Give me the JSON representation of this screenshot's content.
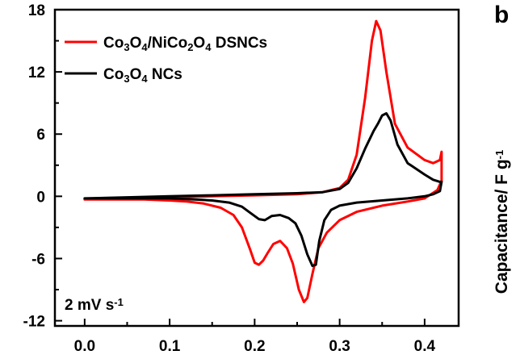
{
  "chart_data": {
    "type": "line",
    "panel_label": "b",
    "ylabel_parts": [
      "Capacitance/ F g",
      "-1"
    ],
    "annotation_parts": [
      "2 mV s",
      "-1"
    ],
    "xlim": [
      -0.035,
      0.44
    ],
    "ylim": [
      -12.5,
      18
    ],
    "x_ticks": [
      "0.0",
      "0.1",
      "0.2",
      "0.3",
      "0.4"
    ],
    "x_tick_values": [
      0.0,
      0.1,
      0.2,
      0.3,
      0.4
    ],
    "y_ticks": [
      "-12",
      "-6",
      "0",
      "6",
      "12",
      "18"
    ],
    "y_tick_values": [
      -12,
      -6,
      0,
      6,
      12,
      18
    ],
    "legend_position": "top-left",
    "series": [
      {
        "name": "Co3O4/NiCo2O4 DSNCs",
        "name_parts": [
          [
            "Co",
            "n"
          ],
          [
            "3",
            "s"
          ],
          [
            "O",
            "n"
          ],
          [
            "4",
            "s"
          ],
          [
            "/NiCo",
            "n"
          ],
          [
            "2",
            "s"
          ],
          [
            "O",
            "n"
          ],
          [
            "4",
            "s"
          ],
          [
            " DSNCs",
            "n"
          ]
        ],
        "color": "#ff0000",
        "x": [
          0.0,
          0.05,
          0.1,
          0.15,
          0.2,
          0.25,
          0.28,
          0.3,
          0.31,
          0.32,
          0.33,
          0.338,
          0.343,
          0.348,
          0.355,
          0.365,
          0.38,
          0.4,
          0.41,
          0.418,
          0.42,
          0.42,
          0.415,
          0.4,
          0.38,
          0.35,
          0.32,
          0.3,
          0.285,
          0.275,
          0.268,
          0.262,
          0.258,
          0.252,
          0.245,
          0.238,
          0.23,
          0.222,
          0.215,
          0.21,
          0.205,
          0.2,
          0.195,
          0.185,
          0.175,
          0.16,
          0.14,
          0.12,
          0.1,
          0.07,
          0.05,
          0.02,
          0.0
        ],
        "y": [
          -0.3,
          -0.2,
          -0.1,
          0.0,
          0.1,
          0.2,
          0.4,
          0.8,
          1.6,
          4.0,
          9.5,
          15.0,
          16.9,
          16.0,
          12.0,
          7.0,
          4.7,
          3.5,
          3.2,
          3.5,
          4.3,
          1.5,
          0.6,
          -0.2,
          -0.5,
          -0.9,
          -1.5,
          -2.3,
          -3.5,
          -5.0,
          -7.5,
          -9.8,
          -10.2,
          -9.0,
          -6.5,
          -5.0,
          -4.3,
          -4.6,
          -5.5,
          -6.2,
          -6.6,
          -6.4,
          -5.2,
          -3.0,
          -1.8,
          -1.1,
          -0.7,
          -0.5,
          -0.4,
          -0.3,
          -0.3,
          -0.3,
          -0.3
        ]
      },
      {
        "name": "Co3O4 NCs",
        "name_parts": [
          [
            "Co",
            "n"
          ],
          [
            "3",
            "s"
          ],
          [
            "O",
            "n"
          ],
          [
            "4",
            "s"
          ],
          [
            " NCs",
            "n"
          ]
        ],
        "color": "#000000",
        "x": [
          0.0,
          0.05,
          0.1,
          0.15,
          0.2,
          0.25,
          0.28,
          0.3,
          0.31,
          0.32,
          0.33,
          0.34,
          0.345,
          0.35,
          0.355,
          0.36,
          0.368,
          0.38,
          0.4,
          0.41,
          0.418,
          0.42,
          0.418,
          0.41,
          0.4,
          0.38,
          0.35,
          0.32,
          0.3,
          0.29,
          0.282,
          0.276,
          0.272,
          0.268,
          0.262,
          0.255,
          0.248,
          0.24,
          0.23,
          0.22,
          0.212,
          0.205,
          0.195,
          0.185,
          0.17,
          0.15,
          0.13,
          0.1,
          0.07,
          0.04,
          0.02,
          0.0
        ],
        "y": [
          -0.2,
          -0.1,
          0.0,
          0.1,
          0.2,
          0.3,
          0.4,
          0.7,
          1.3,
          2.7,
          4.6,
          6.3,
          7.0,
          7.8,
          8.0,
          7.3,
          5.0,
          3.2,
          2.1,
          1.6,
          1.4,
          1.4,
          0.5,
          0.2,
          0.0,
          -0.2,
          -0.4,
          -0.6,
          -0.9,
          -1.3,
          -2.3,
          -4.3,
          -6.6,
          -6.7,
          -5.6,
          -3.8,
          -2.6,
          -2.1,
          -1.8,
          -1.9,
          -2.3,
          -2.2,
          -1.6,
          -1.0,
          -0.6,
          -0.4,
          -0.3,
          -0.2,
          -0.2,
          -0.2,
          -0.2,
          -0.2
        ]
      }
    ]
  }
}
